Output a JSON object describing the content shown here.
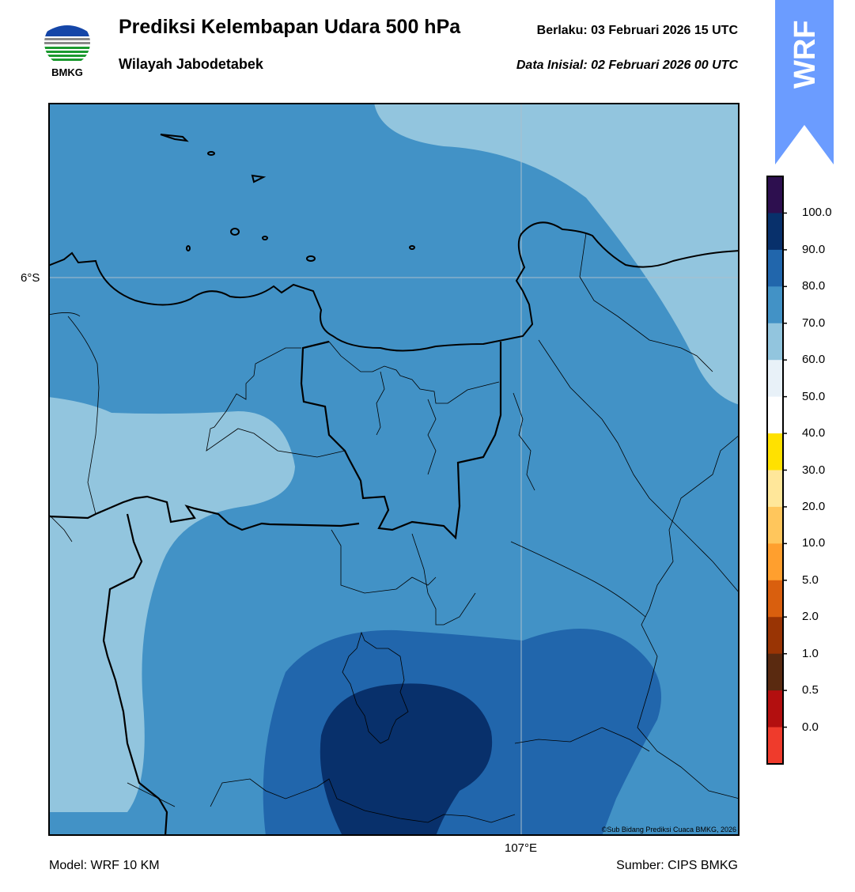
{
  "header": {
    "title": "Prediksi Kelembapan Udara 500 hPa",
    "subtitle": "Wilayah Jabodetabek",
    "valid_label": "Berlaku:  03 Februari 2026 15 UTC",
    "init_label": "Data Inisial:  02 Februari 2026 00 UTC"
  },
  "logo": {
    "text": "BMKG",
    "icon": "bmkg-logo-icon"
  },
  "badge": {
    "text": "WRF",
    "color": "#6b9cff"
  },
  "map": {
    "lat_label": "6°S",
    "lon_label": "107°E",
    "copyright": "©Sub Bidang Prediksi Cuaca BMKG, 2026"
  },
  "footer": {
    "model": "Model: WRF 10 KM",
    "source": "Sumber: CIPS BMKG"
  },
  "colorbar": {
    "unit": "",
    "bins": [
      {
        "color": "#2d0f4f"
      },
      {
        "color": "#08306b"
      },
      {
        "color": "#2166ac"
      },
      {
        "color": "#4292c6"
      },
      {
        "color": "#92c5de"
      },
      {
        "color": "#e8f1f8"
      },
      {
        "color": "#ffffff"
      },
      {
        "color": "#ffe100"
      },
      {
        "color": "#ffe79a"
      },
      {
        "color": "#ffc65c"
      },
      {
        "color": "#ff9f2e"
      },
      {
        "color": "#d95f0e"
      },
      {
        "color": "#993404"
      },
      {
        "color": "#5a2a10"
      },
      {
        "color": "#b30f0f"
      },
      {
        "color": "#ef3b2c"
      }
    ],
    "labels": [
      "100.0",
      "90.0",
      "80.0",
      "70.0",
      "60.0",
      "50.0",
      "40.0",
      "30.0",
      "20.0",
      "10.0",
      "5.0",
      "2.0",
      "1.0",
      "0.5",
      "0.0"
    ]
  },
  "colors": {
    "rh_60_70": "#92c5de",
    "rh_70_80": "#4292c6",
    "rh_80_90": "#2166ac",
    "rh_90_100": "#08306b"
  }
}
